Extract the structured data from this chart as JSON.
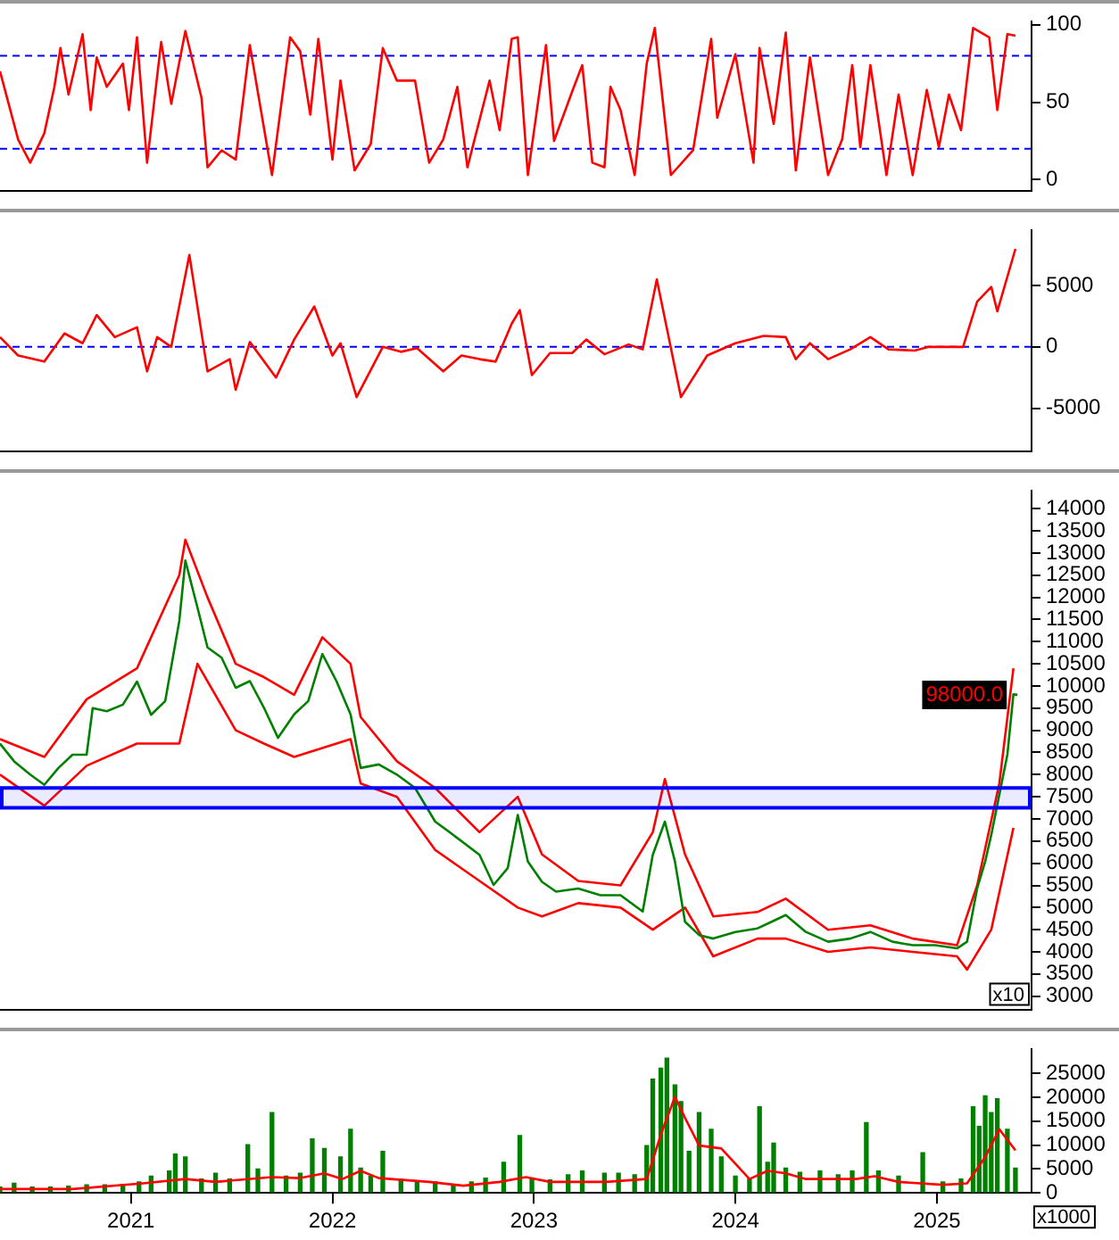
{
  "chart_data": [
    {
      "type": "line",
      "xlim": [
        2020.35,
        2025.47
      ],
      "ylim": [
        -7,
        102
      ],
      "yticks": [
        0,
        50,
        100
      ],
      "tick_labels": "y",
      "marker": "none",
      "ref_lines": [
        {
          "axis": "y",
          "value": 80,
          "color": "#0000ff",
          "line_style": "dashed"
        },
        {
          "axis": "y",
          "value": 20,
          "color": "#0000ff",
          "line_style": "dashed"
        }
      ],
      "series": [
        {
          "color": "#ff0000",
          "x": [
            2020.35,
            2020.44,
            2020.5,
            2020.57,
            2020.62,
            2020.65,
            2020.69,
            2020.76,
            2020.8,
            2020.83,
            2020.88,
            2020.96,
            2020.99,
            2021.03,
            2021.08,
            2021.15,
            2021.2,
            2021.27,
            2021.35,
            2021.38,
            2021.45,
            2021.52,
            2021.59,
            2021.7,
            2021.79,
            2021.84,
            2021.89,
            2021.93,
            2022.0,
            2022.04,
            2022.11,
            2022.19,
            2022.25,
            2022.32,
            2022.41,
            2022.48,
            2022.55,
            2022.62,
            2022.67,
            2022.78,
            2022.83,
            2022.89,
            2022.92,
            2022.97,
            2023.06,
            2023.1,
            2023.19,
            2023.24,
            2023.29,
            2023.35,
            2023.38,
            2023.43,
            2023.5,
            2023.56,
            2023.6,
            2023.68,
            2023.79,
            2023.88,
            2023.91,
            2024.0,
            2024.09,
            2024.12,
            2024.19,
            2024.25,
            2024.3,
            2024.37,
            2024.46,
            2024.53,
            2024.58,
            2024.62,
            2024.67,
            2024.75,
            2024.81,
            2024.88,
            2024.95,
            2025.01,
            2025.06,
            2025.12,
            2025.18,
            2025.26,
            2025.3,
            2025.35,
            2025.39
          ],
          "values": [
            70,
            26,
            11,
            30,
            60,
            85,
            55,
            94,
            45,
            79,
            60,
            75,
            45,
            92,
            11,
            89,
            49,
            96,
            53,
            8,
            19,
            13,
            87,
            3,
            92,
            83,
            42,
            91,
            13,
            64,
            6,
            23,
            85,
            64,
            64,
            11,
            26,
            60,
            8,
            64,
            32,
            91,
            92,
            3,
            87,
            25,
            57,
            74,
            11,
            8,
            60,
            45,
            3,
            75,
            98,
            3,
            19,
            91,
            40,
            81,
            11,
            85,
            36,
            95,
            6,
            79,
            3,
            26,
            74,
            21,
            74,
            3,
            55,
            3,
            58,
            21,
            55,
            32,
            98,
            92,
            45,
            94,
            93
          ]
        }
      ]
    },
    {
      "type": "line",
      "xlim": [
        2020.35,
        2025.47
      ],
      "ylim": [
        -8500,
        9500
      ],
      "yticks": [
        -5000,
        0,
        5000
      ],
      "tick_labels": "y",
      "marker": "none",
      "ref_lines": [
        {
          "axis": "y",
          "value": 0,
          "color": "#0000ff",
          "line_style": "dashed"
        }
      ],
      "series": [
        {
          "color": "#ff0000",
          "x": [
            2020.35,
            2020.44,
            2020.57,
            2020.67,
            2020.76,
            2020.83,
            2020.92,
            2021.03,
            2021.08,
            2021.13,
            2021.2,
            2021.29,
            2021.38,
            2021.49,
            2021.52,
            2021.59,
            2021.72,
            2021.81,
            2021.91,
            2022.0,
            2022.04,
            2022.12,
            2022.25,
            2022.34,
            2022.42,
            2022.55,
            2022.64,
            2022.73,
            2022.81,
            2022.89,
            2022.93,
            2022.99,
            2023.08,
            2023.19,
            2023.26,
            2023.35,
            2023.47,
            2023.54,
            2023.61,
            2023.73,
            2023.86,
            2024.0,
            2024.14,
            2024.25,
            2024.3,
            2024.37,
            2024.46,
            2024.57,
            2024.67,
            2024.76,
            2024.89,
            2024.96,
            2025.13,
            2025.2,
            2025.27,
            2025.3,
            2025.39
          ],
          "values": [
            800,
            -700,
            -1200,
            1100,
            300,
            2600,
            800,
            1600,
            -2000,
            800,
            0,
            7500,
            -2000,
            -1000,
            -3500,
            400,
            -2500,
            600,
            3300,
            -700,
            300,
            -4100,
            0,
            -400,
            -100,
            -2000,
            -700,
            -1000,
            -1200,
            1900,
            3000,
            -2300,
            -500,
            -500,
            600,
            -600,
            200,
            -200,
            5500,
            -4100,
            -700,
            300,
            900,
            800,
            -1000,
            300,
            -1000,
            -200,
            800,
            -200,
            -300,
            0,
            0,
            3700,
            4900,
            2900,
            8000
          ]
        }
      ]
    },
    {
      "type": "line",
      "xlim": [
        2020.35,
        2025.47
      ],
      "ylim": [
        2700,
        14400
      ],
      "yticks": [
        3000,
        3500,
        4000,
        4500,
        5000,
        5500,
        6000,
        6500,
        7000,
        7500,
        8000,
        8500,
        9000,
        9500,
        10000,
        10500,
        11000,
        11500,
        12000,
        12500,
        13000,
        13500,
        14000
      ],
      "tick_labels": "y",
      "marker": "none",
      "bands": [
        {
          "axis": "y",
          "from": 7250,
          "to": 7700,
          "color": "#0000ff"
        }
      ],
      "annotations": [
        {
          "text": "98000.0",
          "x": 2025.4,
          "y": 9800
        },
        "x10"
      ],
      "series": [
        {
          "color": "#008000",
          "x": [
            2020.35,
            2020.42,
            2020.5,
            2020.57,
            2020.64,
            2020.71,
            2020.78,
            2020.81,
            2020.88,
            2020.96,
            2021.03,
            2021.1,
            2021.17,
            2021.24,
            2021.27,
            2021.33,
            2021.38,
            2021.45,
            2021.52,
            2021.59,
            2021.66,
            2021.73,
            2021.81,
            2021.88,
            2021.95,
            2022.02,
            2022.09,
            2022.14,
            2022.23,
            2022.32,
            2022.41,
            2022.51,
            2022.62,
            2022.73,
            2022.8,
            2022.87,
            2022.92,
            2022.97,
            2023.04,
            2023.11,
            2023.22,
            2023.33,
            2023.43,
            2023.54,
            2023.59,
            2023.65,
            2023.7,
            2023.75,
            2023.82,
            2023.89,
            2024.0,
            2024.11,
            2024.18,
            2024.25,
            2024.35,
            2024.46,
            2024.57,
            2024.67,
            2024.78,
            2024.88,
            2024.99,
            2025.1,
            2025.15,
            2025.2,
            2025.24,
            2025.27,
            2025.31,
            2025.35,
            2025.38,
            2025.4
          ],
          "values": [
            8700,
            8300,
            8000,
            7770,
            8150,
            8450,
            8450,
            9500,
            9430,
            9580,
            10100,
            9350,
            9660,
            11470,
            12830,
            11770,
            10870,
            10640,
            9960,
            10110,
            9510,
            8830,
            9360,
            9660,
            10720,
            10110,
            9360,
            8150,
            8230,
            8000,
            7700,
            6940,
            6570,
            6190,
            5510,
            5890,
            7090,
            6040,
            5580,
            5360,
            5430,
            5280,
            5280,
            4910,
            6190,
            6940,
            6040,
            4680,
            4380,
            4300,
            4450,
            4530,
            4680,
            4830,
            4450,
            4230,
            4300,
            4450,
            4230,
            4150,
            4150,
            4080,
            4230,
            5430,
            6040,
            6640,
            7550,
            8450,
            9810,
            9800
          ]
        },
        {
          "color": "#ff0000",
          "x": [
            2020.35,
            2020.57,
            2020.78,
            2021.03,
            2021.24,
            2021.27,
            2021.38,
            2021.52,
            2021.66,
            2021.81,
            2021.95,
            2022.09,
            2022.14,
            2022.32,
            2022.51,
            2022.73,
            2022.92,
            2023.04,
            2023.22,
            2023.43,
            2023.59,
            2023.65,
            2023.75,
            2023.89,
            2024.11,
            2024.25,
            2024.46,
            2024.67,
            2024.88,
            2025.1,
            2025.2,
            2025.31,
            2025.38
          ],
          "values": [
            8800,
            8400,
            9700,
            10400,
            12500,
            13300,
            12000,
            10500,
            10200,
            9800,
            11100,
            10500,
            9300,
            8300,
            7700,
            6700,
            7500,
            6200,
            5600,
            5500,
            6700,
            7900,
            6200,
            4800,
            4900,
            5200,
            4500,
            4600,
            4300,
            4150,
            5500,
            7800,
            10400
          ]
        },
        {
          "color": "#ff0000",
          "x": [
            2020.35,
            2020.57,
            2020.78,
            2021.03,
            2021.24,
            2021.33,
            2021.52,
            2021.66,
            2021.81,
            2021.95,
            2022.09,
            2022.14,
            2022.32,
            2022.51,
            2022.73,
            2022.92,
            2023.04,
            2023.22,
            2023.43,
            2023.59,
            2023.75,
            2023.89,
            2024.11,
            2024.25,
            2024.46,
            2024.67,
            2024.88,
            2025.1,
            2025.15,
            2025.27,
            2025.38
          ],
          "values": [
            8000,
            7300,
            8200,
            8700,
            8700,
            10500,
            9000,
            8700,
            8400,
            8600,
            8800,
            7800,
            7500,
            6300,
            5600,
            5000,
            4800,
            5100,
            5000,
            4500,
            5000,
            3900,
            4300,
            4300,
            4000,
            4100,
            4000,
            3900,
            3600,
            4500,
            6800
          ]
        }
      ]
    },
    {
      "type": "bar",
      "xlim": [
        2020.35,
        2025.47
      ],
      "xticks": [
        2021,
        2022,
        2023,
        2024,
        2025
      ],
      "ylim": [
        0,
        30000
      ],
      "yticks": [
        0,
        5000,
        10000,
        15000,
        20000,
        25000
      ],
      "marker": "none",
      "annotations": [
        "x1000"
      ],
      "series": [
        {
          "color": "#008000",
          "x": [
            2020.35,
            2020.42,
            2020.51,
            2020.6,
            2020.69,
            2020.78,
            2020.87,
            2020.96,
            2021.04,
            2021.1,
            2021.19,
            2021.22,
            2021.27,
            2021.35,
            2021.42,
            2021.49,
            2021.58,
            2021.63,
            2021.7,
            2021.77,
            2021.84,
            2021.9,
            2021.96,
            2022.04,
            2022.09,
            2022.14,
            2022.19,
            2022.25,
            2022.34,
            2022.42,
            2022.51,
            2022.6,
            2022.69,
            2022.76,
            2022.85,
            2022.93,
            2022.99,
            2023.08,
            2023.17,
            2023.24,
            2023.35,
            2023.42,
            2023.5,
            2023.56,
            2023.59,
            2023.63,
            2023.66,
            2023.7,
            2023.73,
            2023.77,
            2023.82,
            2023.88,
            2023.93,
            2024.0,
            2024.07,
            2024.12,
            2024.16,
            2024.19,
            2024.25,
            2024.32,
            2024.42,
            2024.51,
            2024.58,
            2024.65,
            2024.71,
            2024.81,
            2024.93,
            2025.03,
            2025.12,
            2025.18,
            2025.21,
            2025.24,
            2025.27,
            2025.3,
            2025.35,
            2025.39
          ],
          "values": [
            1200,
            2000,
            1200,
            1200,
            1400,
            1700,
            1700,
            1700,
            2300,
            3500,
            4600,
            8100,
            7500,
            2900,
            4100,
            2900,
            10100,
            5000,
            16800,
            3500,
            4100,
            11300,
            9300,
            7500,
            13300,
            5200,
            3500,
            8700,
            2900,
            2300,
            2300,
            1700,
            2300,
            3100,
            6400,
            12000,
            2900,
            2700,
            3800,
            4600,
            4100,
            4100,
            3800,
            9900,
            23800,
            26100,
            28200,
            22600,
            19100,
            8700,
            16800,
            13300,
            7500,
            3500,
            2900,
            18000,
            6400,
            10400,
            5200,
            4300,
            4600,
            3800,
            4600,
            14700,
            4600,
            3500,
            8400,
            2300,
            2900,
            18000,
            13900,
            20300,
            16800,
            19700,
            13300,
            5200
          ]
        },
        {
          "type": "line",
          "color": "#ff0000",
          "x": [
            2020.35,
            2020.71,
            2021.06,
            2021.27,
            2021.42,
            2021.7,
            2021.84,
            2021.96,
            2022.05,
            2022.14,
            2022.23,
            2022.48,
            2022.65,
            2022.83,
            2022.96,
            2023.08,
            2023.36,
            2023.56,
            2023.63,
            2023.7,
            2023.75,
            2023.82,
            2023.93,
            2024.07,
            2024.16,
            2024.25,
            2024.35,
            2024.6,
            2024.69,
            2024.81,
            2025.03,
            2025.15,
            2025.24,
            2025.31,
            2025.39
          ],
          "values": [
            800,
            800,
            2000,
            2900,
            2300,
            3300,
            3100,
            4100,
            2900,
            4600,
            3100,
            2300,
            1500,
            2300,
            3300,
            2300,
            2300,
            2900,
            12200,
            20100,
            15700,
            9900,
            9300,
            2900,
            4600,
            4100,
            2900,
            2900,
            3500,
            2300,
            1700,
            2000,
            7500,
            13300,
            8900
          ]
        }
      ]
    }
  ]
}
